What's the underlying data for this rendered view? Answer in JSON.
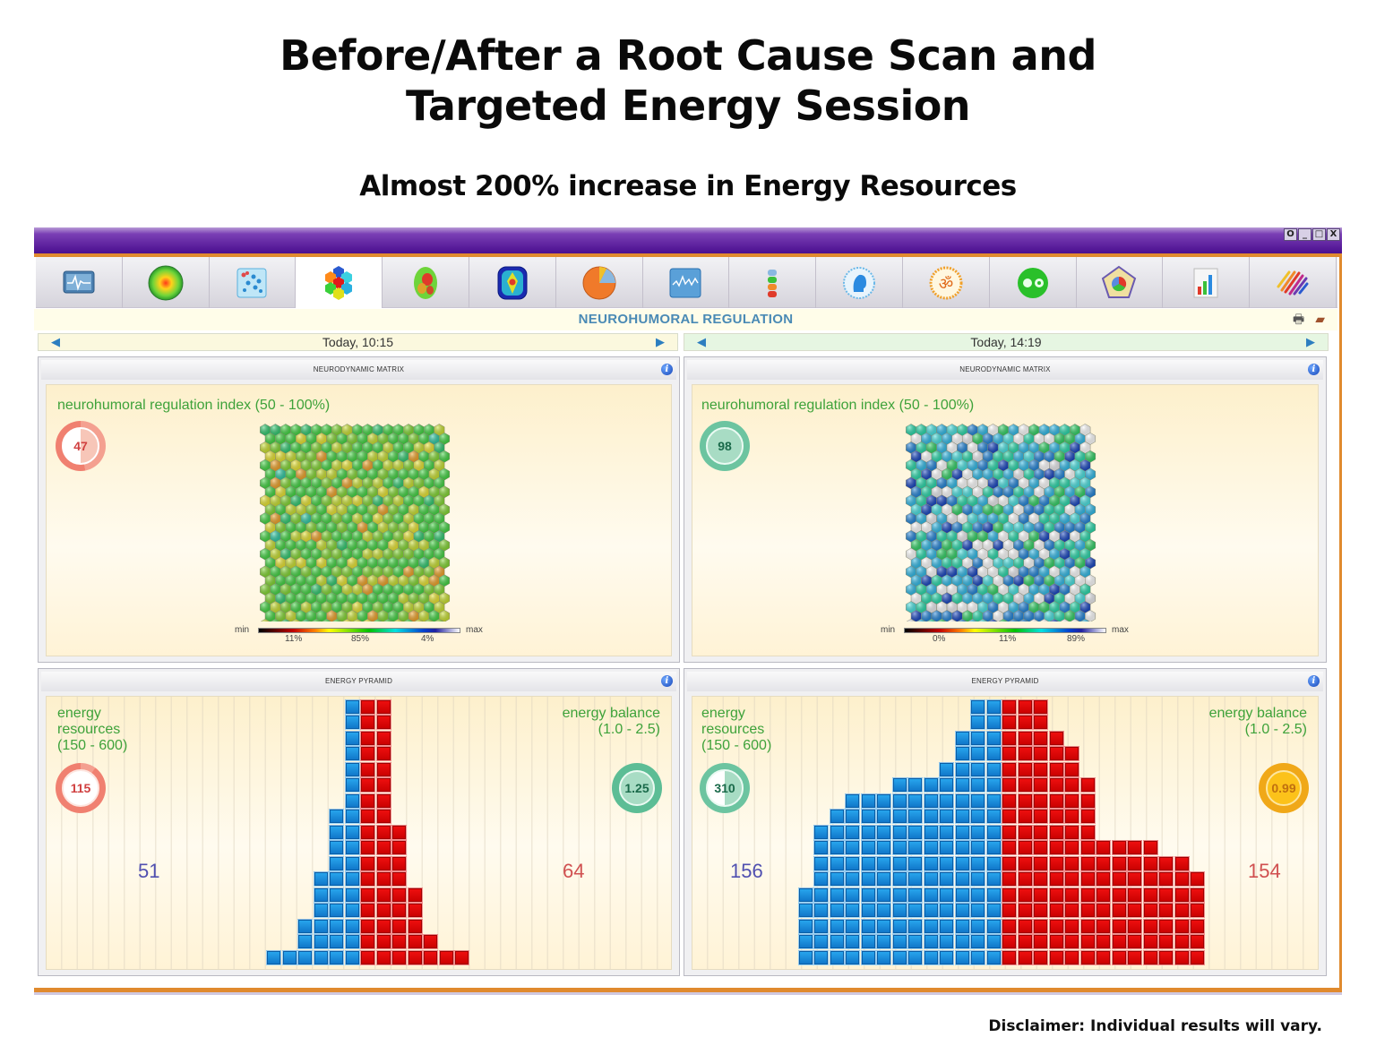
{
  "headline": {
    "line1": "Before/After a Root Cause Scan and",
    "line2": "Targeted Energy  Session",
    "subtitle": "Almost 200% increase in Energy Resources"
  },
  "disclaimer": "Disclaimer:  Individual results will vary.",
  "window": {
    "controls": [
      "O",
      "_",
      "□",
      "X"
    ],
    "colors": {
      "titlebar": "#4a0e8f",
      "accent_orange": "#e08a2e"
    }
  },
  "toolbar": {
    "active_index": 3,
    "tabs": [
      {
        "icon": "ecg-monitor-icon"
      },
      {
        "icon": "heat-sphere-icon"
      },
      {
        "icon": "dot-scatter-icon"
      },
      {
        "icon": "hexagon-cluster-icon"
      },
      {
        "icon": "brain-map-icon"
      },
      {
        "icon": "body-thermal-icon"
      },
      {
        "icon": "pie-chart-icon"
      },
      {
        "icon": "waveform-chart-icon"
      },
      {
        "icon": "chakra-stack-icon"
      },
      {
        "icon": "head-profile-icon"
      },
      {
        "icon": "om-symbol-icon"
      },
      {
        "icon": "yin-yang-icon"
      },
      {
        "icon": "pentagon-radar-icon"
      },
      {
        "icon": "bar-chart-icon"
      },
      {
        "icon": "color-stripes-icon"
      }
    ]
  },
  "section": {
    "title": "NEUROHUMORAL REGULATION",
    "print_icon": "print-icon",
    "book_icon": "book-icon"
  },
  "before": {
    "date": "Today, 10:15",
    "matrix": {
      "header": "NEURODYNAMIC MATRIX",
      "label": "neurohumoral regulation index (50 - 100%)",
      "index_value": "47",
      "colorbar": {
        "min": "min",
        "max": "max",
        "pct1": "11%",
        "pct2": "85%",
        "pct3": "4%"
      },
      "palette": "warm"
    },
    "pyramid": {
      "header": "ENERGY PYRAMID",
      "resources_label": [
        "energy",
        "resources",
        "(150 - 600)"
      ],
      "resources_value": "115",
      "balance_label": [
        "energy balance",
        "(1.0 - 2.5)"
      ],
      "balance_value": "1.25",
      "left_count": "51",
      "right_count": "64"
    }
  },
  "after": {
    "date": "Today, 14:19",
    "matrix": {
      "header": "NEURODYNAMIC MATRIX",
      "label": "neurohumoral regulation index (50 - 100%)",
      "index_value": "98",
      "colorbar": {
        "min": "min",
        "max": "max",
        "pct1": "0%",
        "pct2": "11%",
        "pct3": "89%"
      },
      "palette": "cool"
    },
    "pyramid": {
      "header": "ENERGY PYRAMID",
      "resources_label": [
        "energy",
        "resources",
        "(150 - 600)"
      ],
      "resources_value": "310",
      "balance_label": [
        "energy balance",
        "(1.0 - 2.5)"
      ],
      "balance_value": "0.99",
      "left_count": "156",
      "right_count": "154"
    }
  },
  "chart_data": [
    {
      "type": "bar",
      "title": "ENERGY PYRAMID (Before, Today 10:15)",
      "series": [
        {
          "name": "blue (left)",
          "values": [
            1,
            1,
            3,
            6,
            10,
            17
          ],
          "total_label": 51
        },
        {
          "name": "red (right)",
          "values": [
            17,
            17,
            9,
            5,
            2,
            1,
            1
          ],
          "total_label": 64
        }
      ],
      "energy_resources": 115,
      "energy_balance": 1.25
    },
    {
      "type": "bar",
      "title": "ENERGY PYRAMID (After, Today 14:19)",
      "series": [
        {
          "name": "blue (left)",
          "values": [
            5,
            9,
            10,
            11,
            11,
            11,
            12,
            12,
            12,
            13,
            15,
            17,
            17
          ],
          "total_label": 156
        },
        {
          "name": "red (right)",
          "values": [
            17,
            17,
            17,
            15,
            14,
            12,
            8,
            8,
            8,
            8,
            7,
            7,
            6
          ],
          "total_label": 154
        }
      ],
      "energy_resources": 310,
      "energy_balance": 0.99
    },
    {
      "type": "heatmap",
      "title": "NEURODYNAMIC MATRIX (Before)",
      "index": 47,
      "distribution": {
        "low": "11%",
        "mid": "85%",
        "high": "4%"
      }
    },
    {
      "type": "heatmap",
      "title": "NEURODYNAMIC MATRIX (After)",
      "index": 98,
      "distribution": {
        "low": "0%",
        "mid": "11%",
        "high": "89%"
      }
    }
  ]
}
